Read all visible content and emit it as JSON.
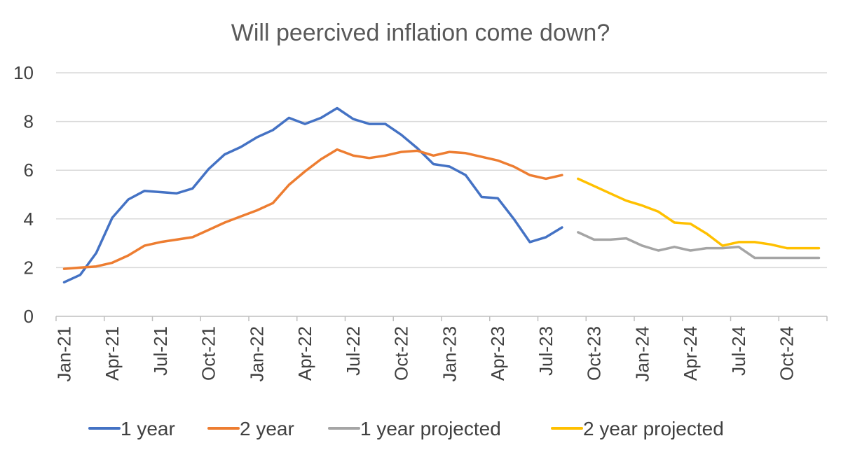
{
  "chart_data": {
    "type": "line",
    "title": "Will peercived inflation come down?",
    "xlabel": "",
    "ylabel": "",
    "ylim": [
      0,
      10
    ],
    "yticks": [
      "0",
      "2",
      "4",
      "6",
      "8",
      "10"
    ],
    "x_start": "Jan-21",
    "n_months": 48,
    "xtick_labels": [
      {
        "index": 0,
        "label": "Jan-21"
      },
      {
        "index": 3,
        "label": "Apr-21"
      },
      {
        "index": 6,
        "label": "Jul-21"
      },
      {
        "index": 9,
        "label": "Oct-21"
      },
      {
        "index": 12,
        "label": "Jan-22"
      },
      {
        "index": 15,
        "label": "Apr-22"
      },
      {
        "index": 18,
        "label": "Jul-22"
      },
      {
        "index": 21,
        "label": "Oct-22"
      },
      {
        "index": 24,
        "label": "Jan-23"
      },
      {
        "index": 27,
        "label": "Apr-23"
      },
      {
        "index": 30,
        "label": "Jul-23"
      },
      {
        "index": 33,
        "label": "Oct-23"
      },
      {
        "index": 36,
        "label": "Jan-24"
      },
      {
        "index": 39,
        "label": "Apr-24"
      },
      {
        "index": 42,
        "label": "Jul-24"
      },
      {
        "index": 45,
        "label": "Oct-24"
      }
    ],
    "series": [
      {
        "name": "1 year",
        "color": "#4472c4",
        "start_index": 0,
        "values": [
          1.4,
          1.7,
          2.6,
          4.05,
          4.8,
          5.15,
          5.1,
          5.05,
          5.25,
          6.05,
          6.65,
          6.95,
          7.35,
          7.65,
          8.15,
          7.9,
          8.15,
          8.55,
          8.1,
          7.9,
          7.9,
          7.45,
          6.9,
          6.25,
          6.15,
          5.8,
          4.9,
          4.85,
          4.0,
          3.05,
          3.25,
          3.65
        ]
      },
      {
        "name": "2 year",
        "color": "#ed7d31",
        "start_index": 0,
        "values": [
          1.95,
          2.0,
          2.05,
          2.2,
          2.5,
          2.9,
          3.05,
          3.15,
          3.25,
          3.55,
          3.85,
          4.1,
          4.35,
          4.65,
          5.4,
          5.95,
          6.45,
          6.85,
          6.6,
          6.5,
          6.6,
          6.75,
          6.8,
          6.6,
          6.75,
          6.7,
          6.55,
          6.4,
          6.15,
          5.8,
          5.65,
          5.8
        ]
      },
      {
        "name": "1 year projected",
        "color": "#a5a5a5",
        "start_index": 32,
        "values": [
          3.45,
          3.15,
          3.15,
          3.2,
          2.9,
          2.7,
          2.85,
          2.7,
          2.8,
          2.8,
          2.85,
          2.4,
          2.4,
          2.4,
          2.4,
          2.4
        ]
      },
      {
        "name": "2 year projected",
        "color": "#ffc000",
        "start_index": 32,
        "values": [
          5.65,
          5.35,
          5.05,
          4.75,
          4.55,
          4.3,
          3.85,
          3.8,
          3.4,
          2.9,
          3.05,
          3.05,
          2.95,
          2.8,
          2.8,
          2.8
        ]
      }
    ],
    "legend": {
      "position": "bottom",
      "entries": [
        "1 year",
        "2 year",
        "1 year projected",
        "2 year projected"
      ]
    },
    "grid": true
  }
}
